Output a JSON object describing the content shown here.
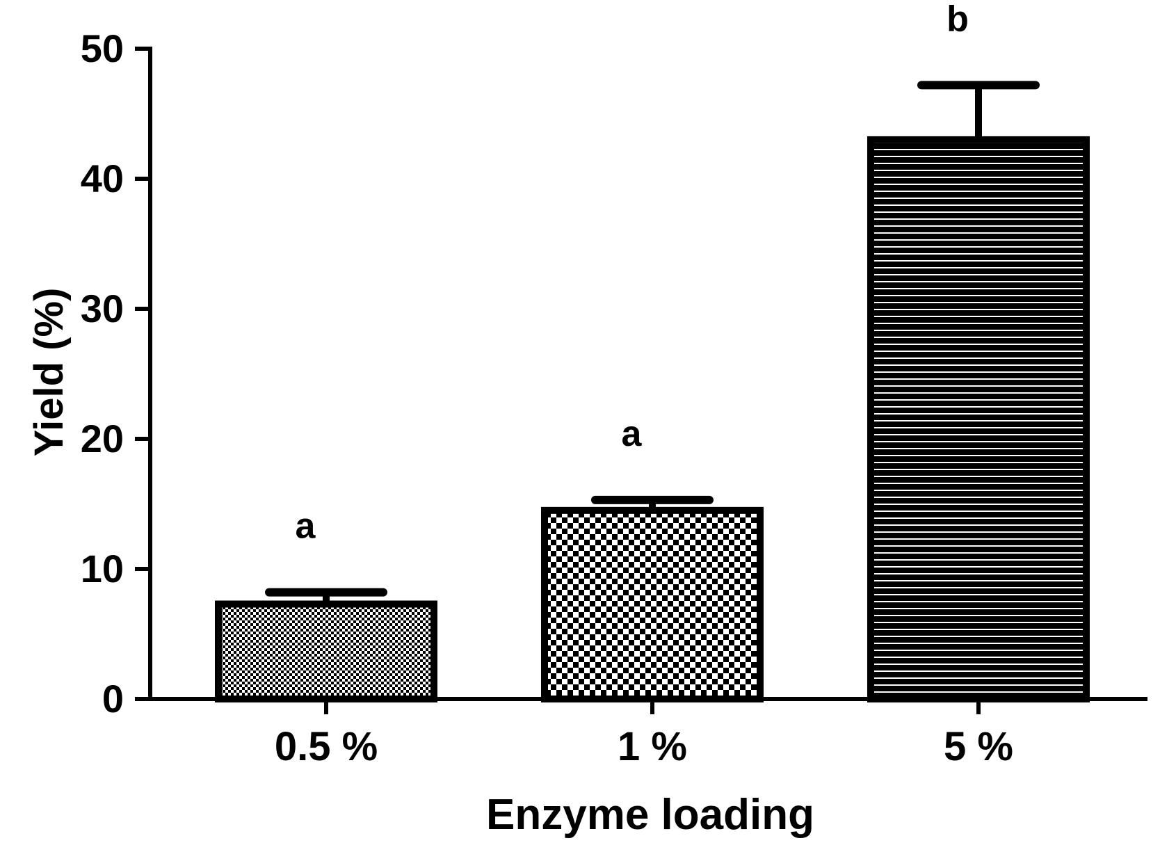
{
  "chart_data": {
    "type": "bar",
    "title": "",
    "xlabel": "Enzyme loading",
    "ylabel": "Yield (%)",
    "ylim": [
      0,
      50
    ],
    "yticks": [
      "0",
      "10",
      "20",
      "30",
      "40",
      "50"
    ],
    "categories": [
      "0.5 %",
      "1 %",
      "5 %"
    ],
    "values": [
      7.3,
      14.5,
      43.0
    ],
    "error_upper": [
      8.2,
      15.3,
      47.2
    ],
    "significance_letters": [
      "a",
      "a",
      "b"
    ],
    "bar_patterns": [
      "fine-checker",
      "checker",
      "horizontal-lines"
    ],
    "grid": false,
    "legend": "none",
    "colors": {
      "bar_stroke": "#000000",
      "background": "#ffffff"
    }
  }
}
